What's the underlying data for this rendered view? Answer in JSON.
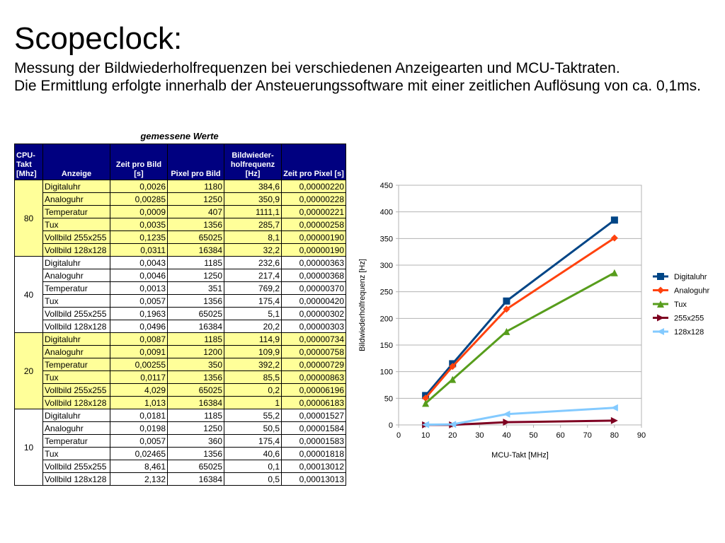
{
  "slide": {
    "title": "Scopeclock:",
    "subtitle_line1": "Messung der Bildwiederholfrequenzen bei verschiedenen Anzeigearten und MCU-Taktraten.",
    "subtitle_line2": "Die Ermittlung erfolgte innerhalb der Ansteuerungssoftware mit einer zeitlichen Auflösung von ca. 0,1ms."
  },
  "table": {
    "caption": "gemessene Werte",
    "headers": [
      "CPU-Takt [Mhz]",
      "Anzeige",
      "Zeit pro Bild [s]",
      "Pixel pro Bild",
      "Bildwieder-holfrequenz [Hz]",
      "Zeit pro Pixel [s]"
    ],
    "groups": [
      {
        "cpu": "80",
        "style": "yellow",
        "rows": [
          [
            "Digitaluhr",
            "0,0026",
            "1180",
            "384,6",
            "0,00000220"
          ],
          [
            "Analoguhr",
            "0,00285",
            "1250",
            "350,9",
            "0,00000228"
          ],
          [
            "Temperatur",
            "0,0009",
            "407",
            "1111,1",
            "0,00000221"
          ],
          [
            "Tux",
            "0,0035",
            "1356",
            "285,7",
            "0,00000258"
          ],
          [
            "Vollbild 255x255",
            "0,1235",
            "65025",
            "8,1",
            "0,00000190"
          ],
          [
            "Vollbild 128x128",
            "0,0311",
            "16384",
            "32,2",
            "0,00000190"
          ]
        ]
      },
      {
        "cpu": "40",
        "style": "white",
        "rows": [
          [
            "Digitaluhr",
            "0,0043",
            "1185",
            "232,6",
            "0,00000363"
          ],
          [
            "Analoguhr",
            "0,0046",
            "1250",
            "217,4",
            "0,00000368"
          ],
          [
            "Temperatur",
            "0,0013",
            "351",
            "769,2",
            "0,00000370"
          ],
          [
            "Tux",
            "0,0057",
            "1356",
            "175,4",
            "0,00000420"
          ],
          [
            "Vollbild 255x255",
            "0,1963",
            "65025",
            "5,1",
            "0,00000302"
          ],
          [
            "Vollbild 128x128",
            "0,0496",
            "16384",
            "20,2",
            "0,00000303"
          ]
        ]
      },
      {
        "cpu": "20",
        "style": "yellow",
        "rows": [
          [
            "Digitaluhr",
            "0,0087",
            "1185",
            "114,9",
            "0,00000734"
          ],
          [
            "Analoguhr",
            "0,0091",
            "1200",
            "109,9",
            "0,00000758"
          ],
          [
            "Temperatur",
            "0,00255",
            "350",
            "392,2",
            "0,00000729"
          ],
          [
            "Tux",
            "0,0117",
            "1356",
            "85,5",
            "0,00000863"
          ],
          [
            "Vollbild 255x255",
            "4,029",
            "65025",
            "0,2",
            "0,00006196"
          ],
          [
            "Vollbild 128x128",
            "1,013",
            "16384",
            "1",
            "0,00006183"
          ]
        ]
      },
      {
        "cpu": "10",
        "style": "white",
        "rows": [
          [
            "Digitaluhr",
            "0,0181",
            "1185",
            "55,2",
            "0,00001527"
          ],
          [
            "Analoguhr",
            "0,0198",
            "1250",
            "50,5",
            "0,00001584"
          ],
          [
            "Temperatur",
            "0,0057",
            "360",
            "175,4",
            "0,00001583"
          ],
          [
            "Tux",
            "0,02465",
            "1356",
            "40,6",
            "0,00001818"
          ],
          [
            "Vollbild 255x255",
            "8,461",
            "65025",
            "0,1",
            "0,00013012"
          ],
          [
            "Vollbild 128x128",
            "2,132",
            "16384",
            "0,5",
            "0,00013013"
          ]
        ]
      }
    ]
  },
  "chart_data": {
    "type": "line",
    "xlabel": "MCU-Takt [MHz]",
    "ylabel": "Bildwiederholfrequenz [Hz]",
    "xlim": [
      0,
      90
    ],
    "ylim": [
      0,
      450
    ],
    "xticks": [
      0,
      10,
      20,
      30,
      40,
      50,
      60,
      70,
      80,
      90
    ],
    "yticks": [
      0,
      50,
      100,
      150,
      200,
      250,
      300,
      350,
      400,
      450
    ],
    "grid": "horizontal",
    "legend_position": "right",
    "x": [
      10,
      20,
      40,
      80
    ],
    "series": [
      {
        "name": "Digitaluhr",
        "values": [
          55.2,
          114.9,
          232.6,
          384.6
        ],
        "color": "#004586",
        "marker": "square"
      },
      {
        "name": "Analoguhr",
        "values": [
          50.5,
          109.9,
          217.4,
          350.9
        ],
        "color": "#ff420e",
        "marker": "diamond"
      },
      {
        "name": "Tux",
        "values": [
          40.6,
          85.5,
          175.4,
          285.7
        ],
        "color": "#579d1c",
        "marker": "triangle-up"
      },
      {
        "name": "255x255",
        "values": [
          0.1,
          0.2,
          5.1,
          8.1
        ],
        "color": "#7e0021",
        "marker": "triangle-right"
      },
      {
        "name": "128x128",
        "values": [
          0.5,
          1,
          20.2,
          32.2
        ],
        "color": "#83caff",
        "marker": "triangle-left"
      }
    ]
  }
}
